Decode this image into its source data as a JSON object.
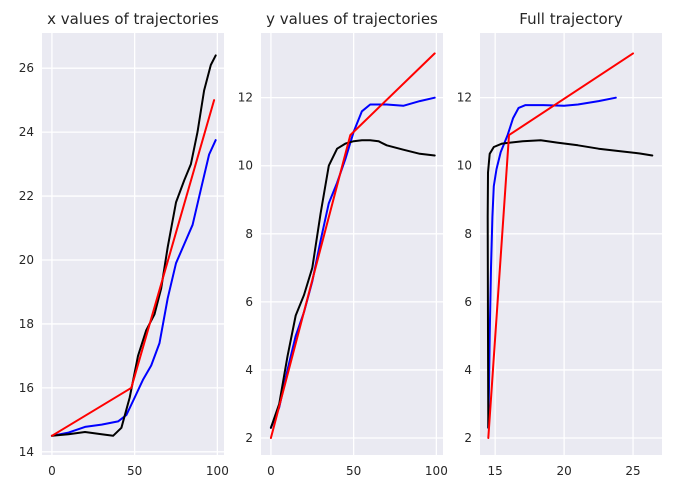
{
  "chart_data": [
    {
      "type": "line",
      "title": "x values of trajectories",
      "xlim": [
        -6,
        104
      ],
      "ylim": [
        13.9,
        27.1
      ],
      "x_ticks": [
        0,
        50,
        100
      ],
      "y_ticks": [
        14,
        16,
        18,
        20,
        22,
        24,
        26
      ],
      "grid": true,
      "series": [
        {
          "color": "#0000ff",
          "points": [
            [
              0,
              14.5
            ],
            [
              10,
              14.6
            ],
            [
              20,
              14.78
            ],
            [
              30,
              14.85
            ],
            [
              40,
              14.95
            ],
            [
              45,
              15.15
            ],
            [
              50,
              15.7
            ],
            [
              55,
              16.25
            ],
            [
              60,
              16.7
            ],
            [
              65,
              17.4
            ],
            [
              70,
              18.8
            ],
            [
              75,
              19.9
            ],
            [
              80,
              20.5
            ],
            [
              85,
              21.1
            ],
            [
              90,
              22.2
            ],
            [
              95,
              23.3
            ],
            [
              99,
              23.75
            ]
          ]
        },
        {
          "color": "#000000",
          "points": [
            [
              0,
              14.5
            ],
            [
              10,
              14.55
            ],
            [
              20,
              14.62
            ],
            [
              30,
              14.55
            ],
            [
              37,
              14.5
            ],
            [
              42,
              14.75
            ],
            [
              47,
              15.7
            ],
            [
              52,
              17.0
            ],
            [
              57,
              17.8
            ],
            [
              62,
              18.3
            ],
            [
              66,
              19.1
            ],
            [
              70,
              20.4
            ],
            [
              75,
              21.8
            ],
            [
              80,
              22.5
            ],
            [
              84,
              23.0
            ],
            [
              88,
              24.0
            ],
            [
              92,
              25.3
            ],
            [
              96,
              26.1
            ],
            [
              99,
              26.4
            ]
          ]
        },
        {
          "color": "#ff0000",
          "points": [
            [
              0,
              14.5
            ],
            [
              48,
              16.0
            ],
            [
              98,
              25.0
            ]
          ]
        }
      ]
    },
    {
      "type": "line",
      "title": "y values of trajectories",
      "xlim": [
        -6,
        104
      ],
      "ylim": [
        1.5,
        13.9
      ],
      "x_ticks": [
        0,
        50,
        100
      ],
      "y_ticks": [
        2,
        4,
        6,
        8,
        10,
        12
      ],
      "grid": true,
      "series": [
        {
          "color": "#0000ff",
          "points": [
            [
              0,
              2.3
            ],
            [
              5,
              2.9
            ],
            [
              10,
              4.0
            ],
            [
              15,
              5.0
            ],
            [
              20,
              5.7
            ],
            [
              25,
              6.6
            ],
            [
              30,
              7.8
            ],
            [
              35,
              8.9
            ],
            [
              40,
              9.5
            ],
            [
              45,
              10.2
            ],
            [
              50,
              11.0
            ],
            [
              55,
              11.6
            ],
            [
              60,
              11.8
            ],
            [
              70,
              11.8
            ],
            [
              80,
              11.76
            ],
            [
              90,
              11.9
            ],
            [
              99,
              12.0
            ]
          ]
        },
        {
          "color": "#000000",
          "points": [
            [
              0,
              2.3
            ],
            [
              5,
              3.0
            ],
            [
              10,
              4.4
            ],
            [
              15,
              5.6
            ],
            [
              20,
              6.2
            ],
            [
              25,
              7.0
            ],
            [
              30,
              8.6
            ],
            [
              35,
              10.0
            ],
            [
              40,
              10.5
            ],
            [
              45,
              10.65
            ],
            [
              50,
              10.72
            ],
            [
              55,
              10.75
            ],
            [
              60,
              10.75
            ],
            [
              65,
              10.72
            ],
            [
              70,
              10.6
            ],
            [
              80,
              10.47
            ],
            [
              90,
              10.35
            ],
            [
              99,
              10.3
            ]
          ]
        },
        {
          "color": "#ff0000",
          "points": [
            [
              0,
              2.0
            ],
            [
              48,
              10.9
            ],
            [
              99,
              13.3
            ]
          ]
        }
      ]
    },
    {
      "type": "line",
      "title": "Full trajectory",
      "xlim": [
        13.9,
        27.1
      ],
      "ylim": [
        1.5,
        13.9
      ],
      "x_ticks": [
        15,
        20,
        25
      ],
      "y_ticks": [
        2,
        4,
        6,
        8,
        10,
        12
      ],
      "grid": true,
      "series": [
        {
          "color": "#0000ff",
          "points": [
            [
              14.5,
              2.3
            ],
            [
              14.55,
              3.5
            ],
            [
              14.6,
              5.0
            ],
            [
              14.7,
              7.0
            ],
            [
              14.8,
              8.5
            ],
            [
              14.9,
              9.4
            ],
            [
              15.1,
              9.9
            ],
            [
              15.4,
              10.4
            ],
            [
              15.9,
              10.9
            ],
            [
              16.3,
              11.4
            ],
            [
              16.7,
              11.7
            ],
            [
              17.2,
              11.78
            ],
            [
              18.5,
              11.78
            ],
            [
              20.0,
              11.76
            ],
            [
              21.0,
              11.8
            ],
            [
              22.5,
              11.9
            ],
            [
              23.75,
              12.0
            ]
          ]
        },
        {
          "color": "#000000",
          "points": [
            [
              14.5,
              2.3
            ],
            [
              14.48,
              5.0
            ],
            [
              14.46,
              8.5
            ],
            [
              14.48,
              9.8
            ],
            [
              14.6,
              10.35
            ],
            [
              14.9,
              10.55
            ],
            [
              15.5,
              10.65
            ],
            [
              17.0,
              10.72
            ],
            [
              18.3,
              10.75
            ],
            [
              19.5,
              10.68
            ],
            [
              21.0,
              10.6
            ],
            [
              22.5,
              10.5
            ],
            [
              24.0,
              10.43
            ],
            [
              25.5,
              10.36
            ],
            [
              26.4,
              10.3
            ]
          ]
        },
        {
          "color": "#ff0000",
          "points": [
            [
              14.5,
              2.0
            ],
            [
              16.0,
              10.9
            ],
            [
              25.0,
              13.3
            ]
          ]
        }
      ]
    }
  ]
}
